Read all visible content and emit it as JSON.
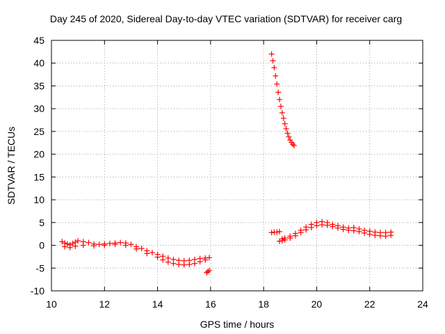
{
  "chart_data": {
    "type": "scatter",
    "title": "Day 245 of 2020, Sidereal Day-to-day VTEC variation (SDTVAR) for receiver carg",
    "xlabel": "GPS time / hours",
    "ylabel": "SDTVAR / TECUs",
    "xlim": [
      10,
      24
    ],
    "ylim": [
      -10,
      45
    ],
    "xticks": [
      10,
      12,
      14,
      16,
      18,
      20,
      22,
      24
    ],
    "yticks": [
      -10,
      -5,
      0,
      5,
      10,
      15,
      20,
      25,
      30,
      35,
      40,
      45
    ],
    "xtick_labels": [
      "10",
      "12",
      "14",
      "16",
      "18",
      "20",
      "22",
      "24"
    ],
    "ytick_labels": [
      "-10",
      "-5",
      "0",
      "5",
      "10",
      "15",
      "20",
      "25",
      "30",
      "35",
      "40",
      "45"
    ],
    "grid": true,
    "marker": "+",
    "series_color": "#ff0000",
    "series": [
      {
        "name": "segment-1",
        "x": [
          10.4,
          10.5,
          10.6,
          10.7,
          10.8,
          10.9,
          11.0,
          11.2,
          11.4,
          11.6,
          11.8,
          12.0,
          12.2,
          12.4,
          12.6,
          12.8,
          13.0,
          13.2,
          13.4,
          13.6,
          13.8,
          14.0,
          14.2,
          14.4,
          14.6,
          14.8,
          15.0,
          15.2,
          15.4,
          15.6,
          15.8,
          15.95
        ],
        "y": [
          0.8,
          0.5,
          0.3,
          0.1,
          0.4,
          0.7,
          1.0,
          0.8,
          0.6,
          0.3,
          0.2,
          0.3,
          0.4,
          0.5,
          0.6,
          0.5,
          0.2,
          -0.3,
          -0.7,
          -1.2,
          -1.6,
          -2.0,
          -2.4,
          -2.8,
          -3.1,
          -3.3,
          -3.4,
          -3.3,
          -3.1,
          -2.9,
          -2.8,
          -2.7
        ]
      },
      {
        "name": "segment-1-lower",
        "x": [
          10.5,
          10.7,
          10.9,
          11.2,
          11.6,
          12.0,
          12.4,
          12.8,
          13.2,
          13.6,
          14.0,
          14.2,
          14.4,
          14.6,
          14.8,
          15.0,
          15.2,
          15.4,
          15.6,
          15.8
        ],
        "y": [
          -0.3,
          -0.5,
          -0.2,
          0.0,
          -0.1,
          0.0,
          0.2,
          0.0,
          -0.8,
          -1.8,
          -2.6,
          -3.2,
          -3.7,
          -4.0,
          -4.2,
          -4.3,
          -4.2,
          -4.0,
          -3.6,
          -3.2
        ]
      },
      {
        "name": "segment-1-tail",
        "x": [
          15.85,
          15.9,
          15.95
        ],
        "y": [
          -6.0,
          -5.8,
          -5.5
        ]
      },
      {
        "name": "segment-2-steep",
        "x": [
          18.3,
          18.35,
          18.4,
          18.45,
          18.5,
          18.55,
          18.6,
          18.65,
          18.7,
          18.75,
          18.8,
          18.85,
          18.9,
          18.95,
          19.0,
          19.05,
          19.1,
          19.15
        ],
        "y": [
          42.0,
          40.5,
          39.0,
          37.2,
          35.4,
          33.6,
          32.0,
          30.5,
          29.1,
          27.9,
          26.7,
          25.6,
          24.6,
          23.8,
          23.1,
          22.6,
          22.2,
          21.9
        ]
      },
      {
        "name": "segment-3",
        "x": [
          18.3,
          18.4,
          18.5,
          18.6,
          18.7,
          18.8,
          19.0,
          19.2,
          19.4,
          19.6,
          19.8,
          20.0,
          20.2,
          20.4,
          20.6,
          20.8,
          21.0,
          21.2,
          21.4,
          21.6,
          21.8,
          22.0,
          22.2,
          22.4,
          22.6,
          22.8
        ],
        "y": [
          2.8,
          2.9,
          2.9,
          3.0,
          1.4,
          1.6,
          2.0,
          2.6,
          3.3,
          4.0,
          4.6,
          5.0,
          5.2,
          5.0,
          4.6,
          4.3,
          4.0,
          3.8,
          3.9,
          3.6,
          3.3,
          3.1,
          2.9,
          2.8,
          2.8,
          2.9
        ]
      },
      {
        "name": "segment-3-lower",
        "x": [
          18.6,
          18.7,
          18.8,
          19.0,
          19.2,
          19.4,
          19.6,
          19.8,
          20.0,
          20.2,
          20.4,
          20.6,
          20.8,
          21.0,
          21.2,
          21.4,
          21.6,
          21.8,
          22.0,
          22.2,
          22.4,
          22.6,
          22.8
        ],
        "y": [
          0.9,
          1.0,
          1.2,
          1.6,
          2.1,
          2.8,
          3.4,
          3.9,
          4.3,
          4.5,
          4.4,
          4.1,
          3.8,
          3.5,
          3.3,
          3.2,
          3.0,
          2.7,
          2.4,
          2.2,
          2.1,
          2.0,
          2.2
        ]
      }
    ]
  }
}
